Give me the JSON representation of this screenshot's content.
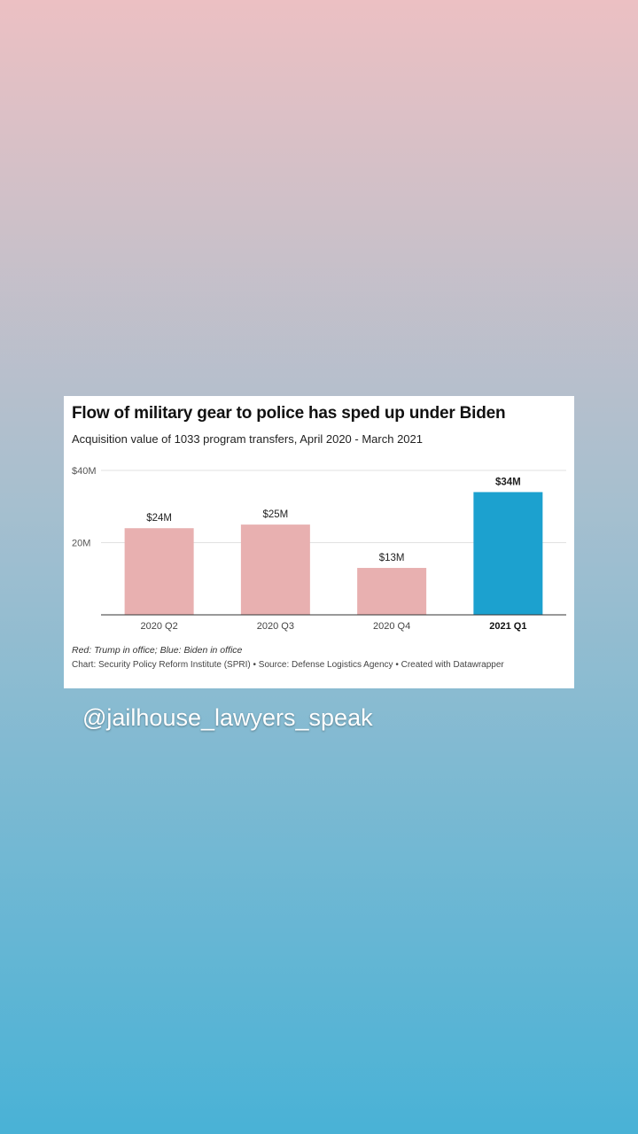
{
  "background": {
    "gradient_top": "#ecc0c3",
    "gradient_mid": "#a5bfcf",
    "gradient_bottom": "#49b2d6"
  },
  "chart_data": {
    "type": "bar",
    "title": "Flow of military gear to police has sped up under Biden",
    "subtitle": "Acquisition value of 1033 program transfers, April 2020 - March 2021",
    "categories": [
      "2020 Q2",
      "2020 Q3",
      "2020 Q4",
      "2021 Q1"
    ],
    "values": [
      24,
      25,
      13,
      34
    ],
    "value_labels": [
      "$24M",
      "$25M",
      "$13M",
      "$34M"
    ],
    "bar_colors": [
      "#e8b0b0",
      "#e8b0b0",
      "#e8b0b0",
      "#1ca1cf"
    ],
    "highlight_index": 3,
    "ylim": [
      0,
      40
    ],
    "yticks": [
      20,
      40
    ],
    "ytick_labels": [
      "20M",
      "$40M"
    ],
    "grid": true,
    "note": "Red: Trump in office; Blue: Biden in office",
    "credit": "Chart: Security Policy Reform Institute (SPRI) • Source: Defense Logistics Agency • Created with Datawrapper"
  },
  "overlay": {
    "handle": "@jailhouse_lawyers_speak"
  }
}
